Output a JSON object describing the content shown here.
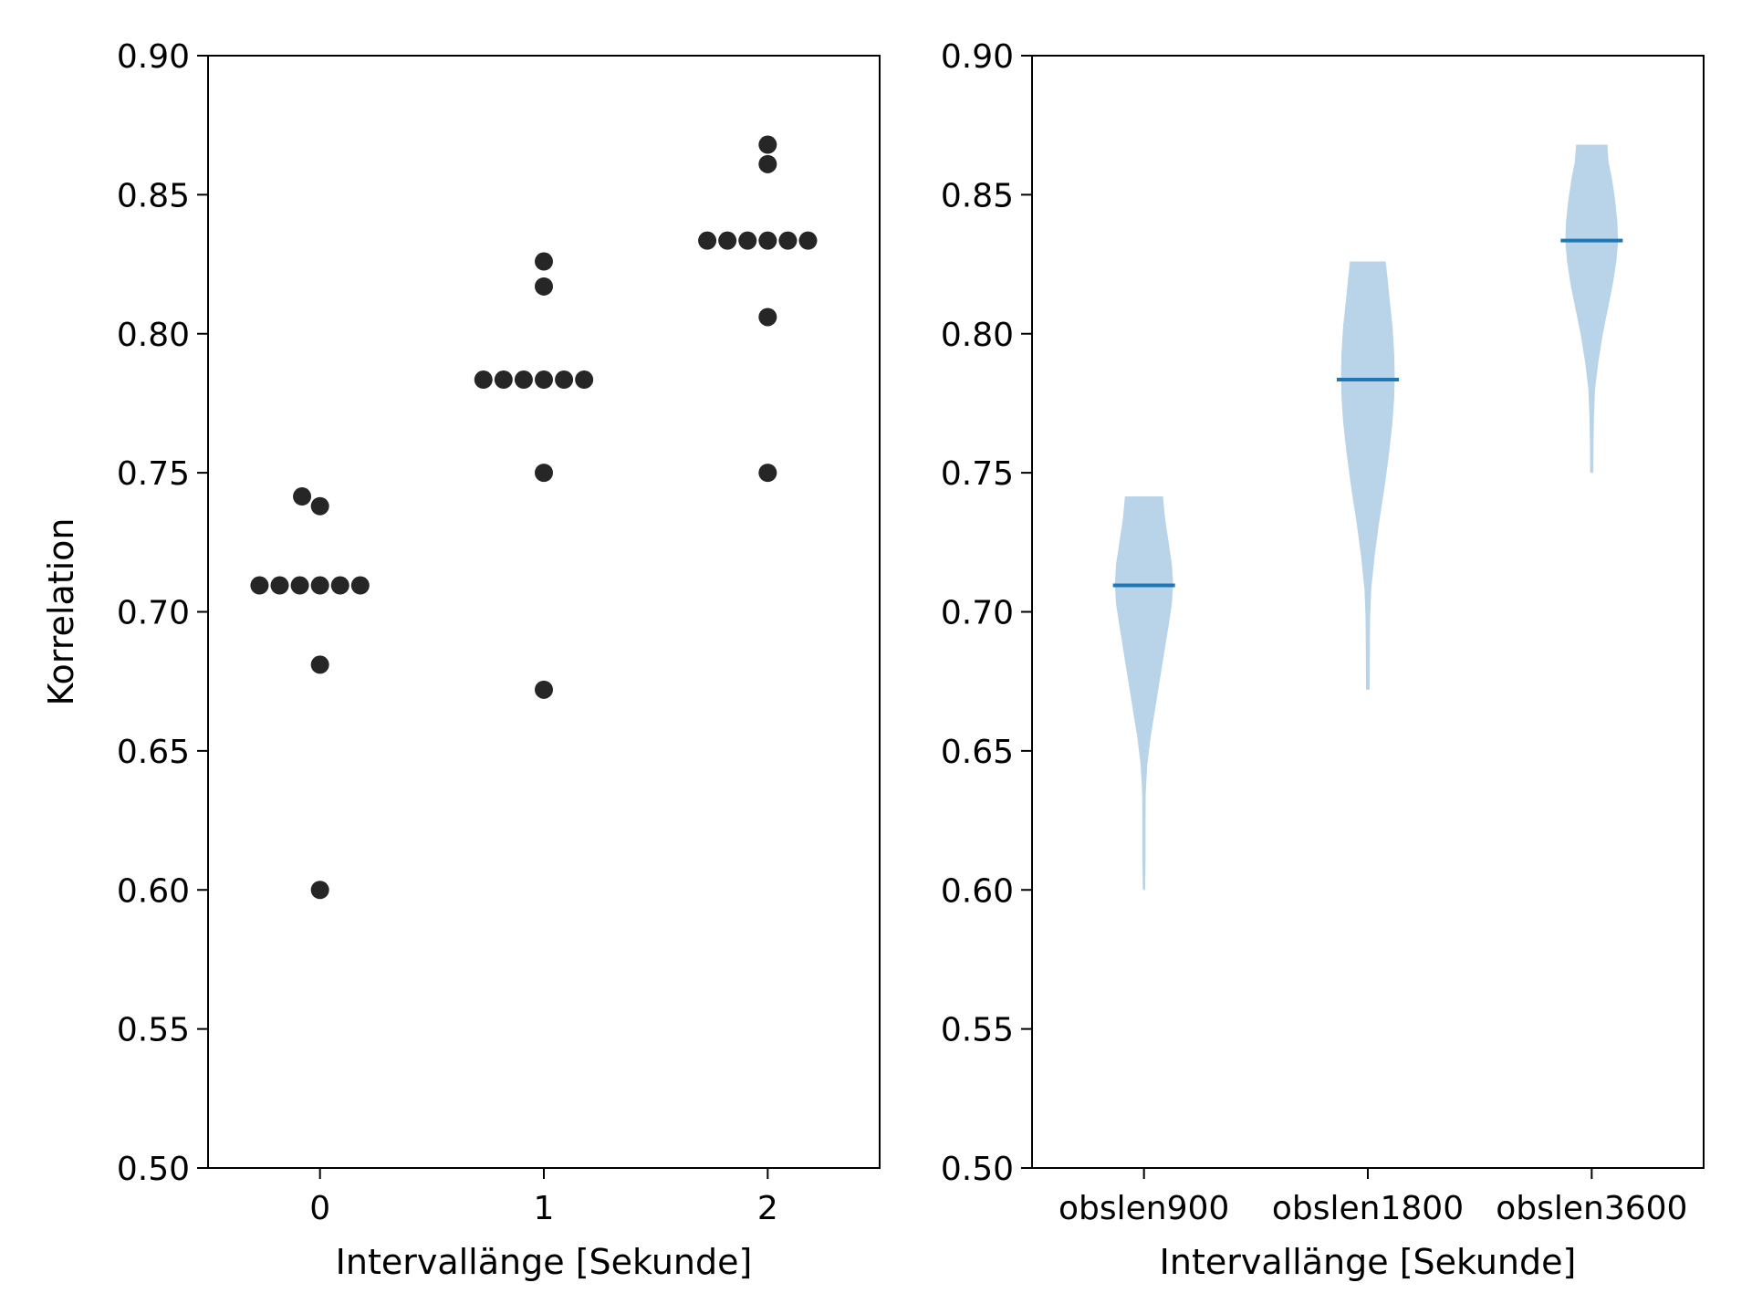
{
  "chart_data": [
    {
      "type": "scatter",
      "xlabel": "Intervallänge [Sekunde]",
      "ylabel": "Korrelation",
      "xlim": [
        -0.5,
        2.5
      ],
      "ylim": [
        0.5,
        0.9
      ],
      "xticks": [
        0,
        1,
        2
      ],
      "xtick_labels": [
        "0",
        "1",
        "2"
      ],
      "yticks": [
        0.5,
        0.55,
        0.6,
        0.65,
        0.7,
        0.75,
        0.8,
        0.85,
        0.9
      ],
      "ytick_labels": [
        "0.50",
        "0.55",
        "0.60",
        "0.65",
        "0.70",
        "0.75",
        "0.80",
        "0.85",
        "0.90"
      ],
      "grid": false,
      "marker_color": "#262626",
      "points": [
        {
          "x": -0.27,
          "y": 0.7095
        },
        {
          "x": -0.18,
          "y": 0.7095
        },
        {
          "x": -0.09,
          "y": 0.7095
        },
        {
          "x": 0.0,
          "y": 0.7095
        },
        {
          "x": 0.09,
          "y": 0.7095
        },
        {
          "x": 0.18,
          "y": 0.7095
        },
        {
          "x": -0.08,
          "y": 0.7415
        },
        {
          "x": 0.0,
          "y": 0.738
        },
        {
          "x": 0.0,
          "y": 0.681
        },
        {
          "x": 0.0,
          "y": 0.6
        },
        {
          "x": 0.73,
          "y": 0.7835
        },
        {
          "x": 0.82,
          "y": 0.7835
        },
        {
          "x": 0.91,
          "y": 0.7835
        },
        {
          "x": 1.0,
          "y": 0.7835
        },
        {
          "x": 1.09,
          "y": 0.7835
        },
        {
          "x": 1.18,
          "y": 0.7835
        },
        {
          "x": 1.0,
          "y": 0.826
        },
        {
          "x": 1.0,
          "y": 0.817
        },
        {
          "x": 1.0,
          "y": 0.75
        },
        {
          "x": 1.0,
          "y": 0.672
        },
        {
          "x": 1.73,
          "y": 0.8335
        },
        {
          "x": 1.82,
          "y": 0.8335
        },
        {
          "x": 1.91,
          "y": 0.8335
        },
        {
          "x": 2.0,
          "y": 0.8335
        },
        {
          "x": 2.09,
          "y": 0.8335
        },
        {
          "x": 2.18,
          "y": 0.8335
        },
        {
          "x": 2.0,
          "y": 0.868
        },
        {
          "x": 2.0,
          "y": 0.861
        },
        {
          "x": 2.0,
          "y": 0.806
        },
        {
          "x": 2.0,
          "y": 0.75
        }
      ]
    },
    {
      "type": "violin",
      "xlabel": "Intervallänge [Sekunde]",
      "ylabel": "",
      "ylim": [
        0.5,
        0.9
      ],
      "yticks": [
        0.5,
        0.55,
        0.6,
        0.65,
        0.7,
        0.75,
        0.8,
        0.85,
        0.9
      ],
      "ytick_labels": [
        "0.50",
        "0.55",
        "0.60",
        "0.65",
        "0.70",
        "0.75",
        "0.80",
        "0.85",
        "0.90"
      ],
      "categories": [
        "obslen900",
        "obslen1800",
        "obslen3600"
      ],
      "grid": false,
      "fill_color": "#b9d4e8",
      "median_color": "#1f77b4",
      "violins": [
        {
          "name": "obslen900",
          "min": 0.6,
          "max": 0.7415,
          "median": 0.7095,
          "profile": [
            [
              0.6,
              0.005
            ],
            [
              0.612,
              0.007
            ],
            [
              0.625,
              0.007
            ],
            [
              0.635,
              0.008
            ],
            [
              0.645,
              0.015
            ],
            [
              0.655,
              0.03
            ],
            [
              0.665,
              0.05
            ],
            [
              0.675,
              0.07
            ],
            [
              0.685,
              0.09
            ],
            [
              0.695,
              0.11
            ],
            [
              0.703,
              0.125
            ],
            [
              0.71,
              0.13
            ],
            [
              0.717,
              0.125
            ],
            [
              0.725,
              0.11
            ],
            [
              0.733,
              0.095
            ],
            [
              0.7415,
              0.085
            ]
          ]
        },
        {
          "name": "obslen1800",
          "min": 0.672,
          "max": 0.826,
          "median": 0.7835,
          "profile": [
            [
              0.672,
              0.008
            ],
            [
              0.685,
              0.009
            ],
            [
              0.698,
              0.01
            ],
            [
              0.708,
              0.015
            ],
            [
              0.72,
              0.03
            ],
            [
              0.732,
              0.05
            ],
            [
              0.745,
              0.075
            ],
            [
              0.757,
              0.095
            ],
            [
              0.768,
              0.11
            ],
            [
              0.777,
              0.118
            ],
            [
              0.785,
              0.12
            ],
            [
              0.793,
              0.118
            ],
            [
              0.803,
              0.11
            ],
            [
              0.812,
              0.098
            ],
            [
              0.82,
              0.088
            ],
            [
              0.826,
              0.08
            ]
          ]
        },
        {
          "name": "obslen3600",
          "min": 0.75,
          "max": 0.868,
          "median": 0.8335,
          "profile": [
            [
              0.75,
              0.007
            ],
            [
              0.76,
              0.008
            ],
            [
              0.77,
              0.01
            ],
            [
              0.78,
              0.015
            ],
            [
              0.79,
              0.03
            ],
            [
              0.8,
              0.05
            ],
            [
              0.81,
              0.075
            ],
            [
              0.818,
              0.095
            ],
            [
              0.826,
              0.11
            ],
            [
              0.833,
              0.118
            ],
            [
              0.84,
              0.115
            ],
            [
              0.848,
              0.105
            ],
            [
              0.856,
              0.09
            ],
            [
              0.862,
              0.075
            ],
            [
              0.868,
              0.07
            ]
          ]
        }
      ]
    }
  ]
}
